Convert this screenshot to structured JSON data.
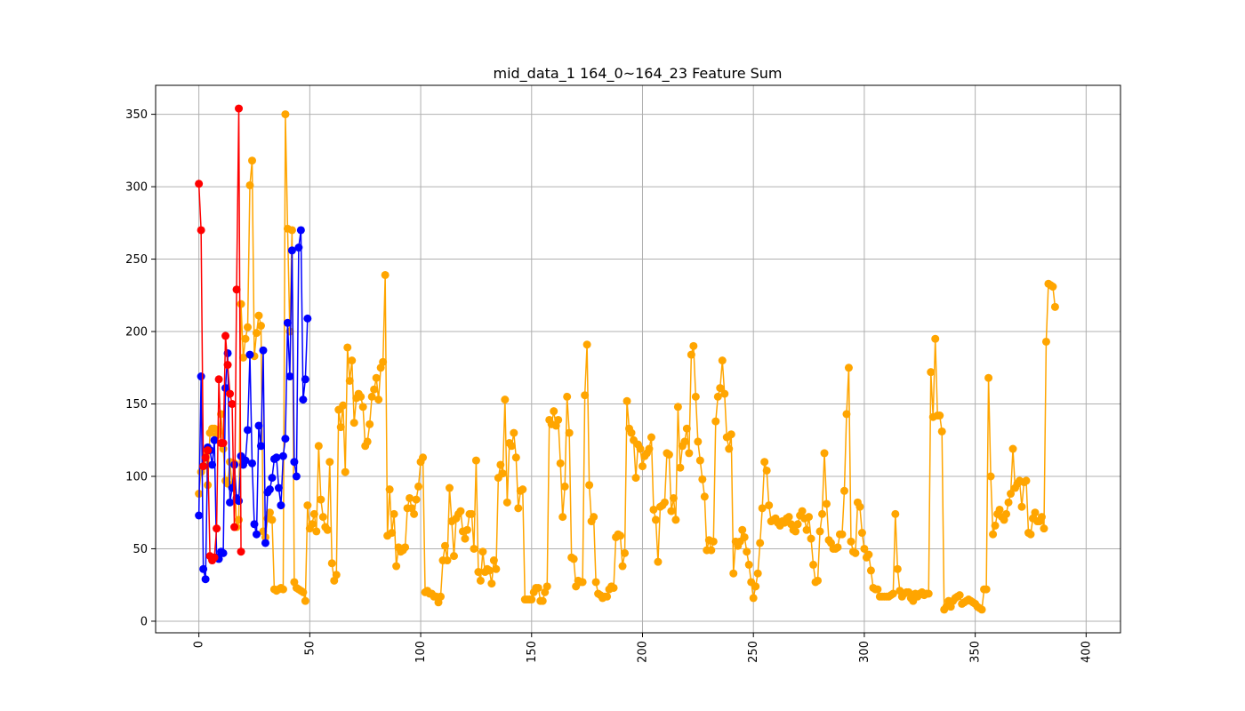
{
  "chart_data": {
    "type": "line",
    "title": "mid_data_1 164_0~164_23 Feature Sum",
    "xlabel": "",
    "ylabel": "",
    "xlim": [
      -19.5,
      415.5
    ],
    "ylim": [
      -8,
      370
    ],
    "x_ticks": [
      0,
      50,
      100,
      150,
      200,
      250,
      300,
      350,
      400
    ],
    "y_ticks": [
      0,
      50,
      100,
      150,
      200,
      250,
      300,
      350
    ],
    "x_tick_rotation": 90,
    "grid": true,
    "legend": "none",
    "series": [
      {
        "color": "#ffa500",
        "marker": "circle",
        "values": [
          88,
          103,
          107,
          118,
          94,
          130,
          133,
          133,
          128,
          131,
          143,
          119,
          97,
          95,
          110,
          93,
          109,
          65,
          70,
          219,
          182,
          195,
          203,
          301,
          318,
          183,
          199,
          211,
          204,
          62,
          58,
          71,
          75,
          70,
          22,
          21,
          22,
          23,
          22,
          350,
          271,
          200,
          270,
          27,
          23,
          22,
          21,
          20,
          14,
          80,
          64,
          67,
          74,
          62,
          121,
          84,
          72,
          65,
          63,
          110,
          40,
          28,
          32,
          146,
          134,
          149,
          103,
          189,
          166,
          180,
          137,
          154,
          157,
          155,
          148,
          121,
          124,
          136,
          155,
          160,
          168,
          153,
          175,
          179,
          239,
          59,
          91,
          61,
          74,
          38,
          51,
          48,
          49,
          51,
          78,
          85,
          78,
          74,
          84,
          93,
          110,
          113,
          20,
          21,
          19,
          19,
          17,
          17,
          13,
          17,
          42,
          52,
          42,
          92,
          69,
          45,
          71,
          74,
          76,
          62,
          57,
          63,
          74,
          74,
          50,
          111,
          34,
          28,
          48,
          34,
          36,
          35,
          26,
          42,
          36,
          99,
          108,
          102,
          153,
          82,
          123,
          121,
          130,
          113,
          78,
          90,
          91,
          15,
          15,
          15,
          15,
          20,
          23,
          23,
          14,
          14,
          20,
          24,
          139,
          136,
          145,
          135,
          139,
          109,
          72,
          93,
          155,
          130,
          44,
          43,
          24,
          28,
          27,
          27,
          156,
          191,
          94,
          69,
          72,
          27,
          19,
          18,
          16,
          17,
          17,
          22,
          24,
          23,
          58,
          60,
          59,
          38,
          47,
          152,
          133,
          130,
          125,
          99,
          122,
          119,
          107,
          114,
          116,
          119,
          127,
          77,
          70,
          41,
          79,
          80,
          82,
          116,
          115,
          76,
          85,
          70,
          148,
          106,
          121,
          124,
          133,
          116,
          184,
          190,
          155,
          124,
          111,
          98,
          86,
          49,
          56,
          49,
          55,
          138,
          155,
          161,
          180,
          157,
          127,
          119,
          129,
          33,
          55,
          52,
          55,
          63,
          58,
          48,
          39,
          27,
          16,
          24,
          33,
          54,
          78,
          110,
          104,
          80,
          69,
          70,
          71,
          68,
          66,
          69,
          68,
          71,
          72,
          67,
          63,
          62,
          67,
          73,
          76,
          71,
          63,
          72,
          57,
          39,
          27,
          28,
          62,
          74,
          116,
          81,
          56,
          54,
          50,
          50,
          51,
          60,
          60,
          90,
          143,
          175,
          55,
          48,
          47,
          82,
          79,
          61,
          50,
          44,
          46,
          35,
          23,
          22,
          22,
          17,
          17,
          17,
          17,
          17,
          18,
          19,
          74,
          36,
          21,
          17,
          19,
          20,
          20,
          16,
          14,
          19,
          17,
          19,
          20,
          18,
          19,
          19,
          172,
          141,
          195,
          142,
          142,
          131,
          8,
          10,
          14,
          10,
          14,
          16,
          17,
          18,
          12,
          13,
          14,
          15,
          14,
          13,
          12,
          10,
          9,
          8,
          22,
          22,
          168,
          100,
          60,
          66,
          74,
          77,
          72,
          70,
          74,
          82,
          88,
          119,
          92,
          95,
          97,
          79,
          96,
          97,
          61,
          60,
          71,
          75,
          69,
          69,
          72,
          64,
          193,
          233,
          232,
          231,
          217
        ]
      },
      {
        "color": "#0000ff",
        "marker": "circle",
        "values": [
          73,
          169,
          36,
          29,
          120,
          118,
          108,
          125,
          44,
          43,
          48,
          47,
          161,
          185,
          82,
          92,
          108,
          85,
          83,
          114,
          108,
          111,
          132,
          184,
          109,
          67,
          60,
          135,
          121,
          187,
          54,
          89,
          91,
          99,
          112,
          113,
          92,
          80,
          114,
          126,
          206,
          169,
          256,
          110,
          100,
          258,
          270,
          153,
          167,
          209
        ]
      },
      {
        "color": "#ff0000",
        "marker": "circle",
        "values": [
          302,
          270,
          107,
          113,
          118,
          45,
          42,
          44,
          64,
          167,
          123,
          123,
          197,
          177,
          157,
          150,
          65,
          229,
          354,
          48
        ]
      }
    ]
  }
}
